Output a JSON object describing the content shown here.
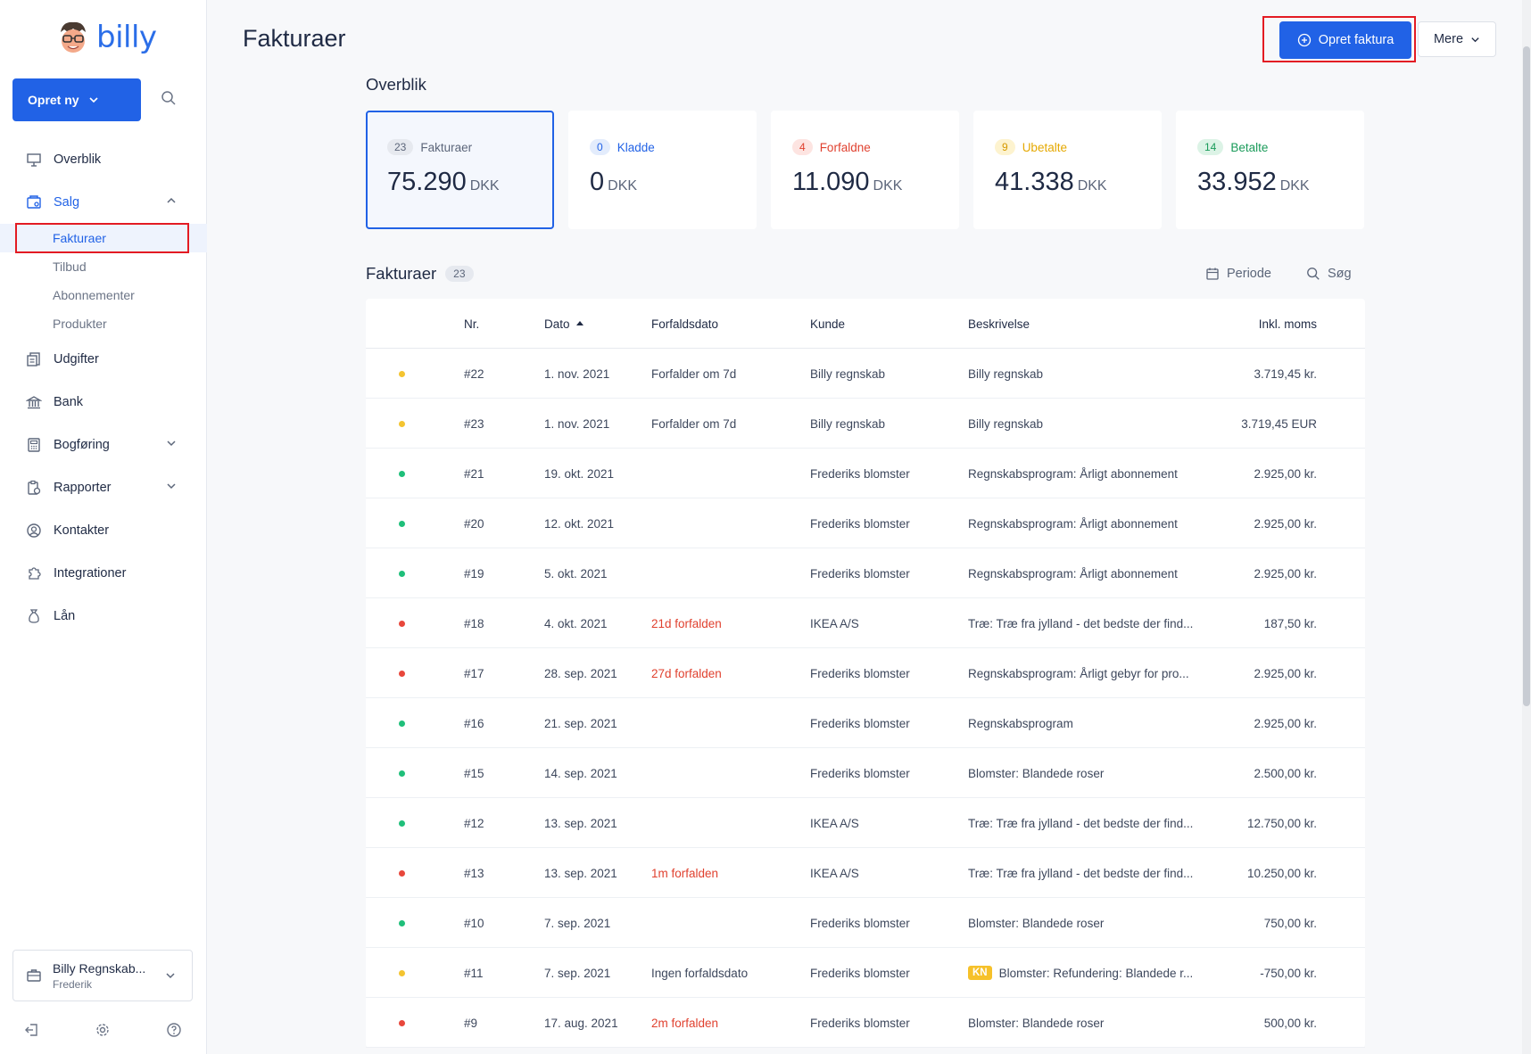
{
  "sidebar": {
    "logo_text": "billy",
    "create_label": "Opret ny",
    "items": [
      {
        "label": "Overblik",
        "icon": "presentation-icon"
      },
      {
        "label": "Salg",
        "icon": "sales-icon"
      },
      {
        "label": "Udgifter",
        "icon": "receipts-icon"
      },
      {
        "label": "Bank",
        "icon": "bank-icon"
      },
      {
        "label": "Bogføring",
        "icon": "calculator-icon"
      },
      {
        "label": "Rapporter",
        "icon": "report-icon"
      },
      {
        "label": "Kontakter",
        "icon": "contact-icon"
      },
      {
        "label": "Integrationer",
        "icon": "puzzle-icon"
      },
      {
        "label": "Lån",
        "icon": "moneybag-icon"
      }
    ],
    "sales_sub": [
      "Fakturaer",
      "Tilbud",
      "Abonnementer",
      "Produkter"
    ],
    "org_name": "Billy Regnskab...",
    "org_user": "Frederik"
  },
  "header": {
    "title": "Fakturaer",
    "create_invoice": "Opret faktura",
    "more": "Mere"
  },
  "overview": {
    "title": "Overblik",
    "cards": [
      {
        "count": "23",
        "label": "Fakturaer",
        "amount": "75.290",
        "currency": "DKK",
        "color": "#5c667a",
        "bg": "#e6e9ef"
      },
      {
        "count": "0",
        "label": "Kladde",
        "amount": "0",
        "currency": "DKK",
        "color": "#2162e6",
        "bg": "#e3ecfc"
      },
      {
        "count": "4",
        "label": "Forfaldne",
        "amount": "11.090",
        "currency": "DKK",
        "color": "#e0412f",
        "bg": "#fde4e1"
      },
      {
        "count": "9",
        "label": "Ubetalte",
        "amount": "41.338",
        "currency": "DKK",
        "color": "#e5a800",
        "bg": "#fdf3cf"
      },
      {
        "count": "14",
        "label": "Betalte",
        "amount": "33.952",
        "currency": "DKK",
        "color": "#1a9b5a",
        "bg": "#dcf3e6"
      }
    ]
  },
  "list": {
    "title": "Fakturaer",
    "count": "23",
    "period": "Periode",
    "search": "Søg",
    "columns": {
      "nr": "Nr.",
      "date": "Dato",
      "due": "Forfaldsdato",
      "customer": "Kunde",
      "description": "Beskrivelse",
      "amount": "Inkl. moms"
    },
    "rows": [
      {
        "status": "#f4c430",
        "nr": "#22",
        "date": "1. nov. 2021",
        "due": "Forfalder om 7d",
        "overdue": false,
        "customer": "Billy regnskab",
        "kn": "",
        "description": "Billy regnskab",
        "amount": "3.719,45 kr."
      },
      {
        "status": "#f4c430",
        "nr": "#23",
        "date": "1. nov. 2021",
        "due": "Forfalder om 7d",
        "overdue": false,
        "customer": "Billy regnskab",
        "kn": "",
        "description": "Billy regnskab",
        "amount": "3.719,45 EUR"
      },
      {
        "status": "#1fbf7a",
        "nr": "#21",
        "date": "19. okt. 2021",
        "due": "",
        "overdue": false,
        "customer": "Frederiks blomster",
        "kn": "",
        "description": "Regnskabsprogram: Årligt abonnement",
        "amount": "2.925,00 kr."
      },
      {
        "status": "#1fbf7a",
        "nr": "#20",
        "date": "12. okt. 2021",
        "due": "",
        "overdue": false,
        "customer": "Frederiks blomster",
        "kn": "",
        "description": "Regnskabsprogram: Årligt abonnement",
        "amount": "2.925,00 kr."
      },
      {
        "status": "#1fbf7a",
        "nr": "#19",
        "date": "5. okt. 2021",
        "due": "",
        "overdue": false,
        "customer": "Frederiks blomster",
        "kn": "",
        "description": "Regnskabsprogram: Årligt abonnement",
        "amount": "2.925,00 kr."
      },
      {
        "status": "#e8473b",
        "nr": "#18",
        "date": "4. okt. 2021",
        "due": "21d forfalden",
        "overdue": true,
        "customer": "IKEA A/S",
        "kn": "",
        "description": "Træ: Træ fra jylland - det bedste der find...",
        "amount": "187,50 kr."
      },
      {
        "status": "#e8473b",
        "nr": "#17",
        "date": "28. sep. 2021",
        "due": "27d forfalden",
        "overdue": true,
        "customer": "Frederiks blomster",
        "kn": "",
        "description": "Regnskabsprogram: Årligt gebyr for pro...",
        "amount": "2.925,00 kr."
      },
      {
        "status": "#1fbf7a",
        "nr": "#16",
        "date": "21. sep. 2021",
        "due": "",
        "overdue": false,
        "customer": "Frederiks blomster",
        "kn": "",
        "description": "Regnskabsprogram",
        "amount": "2.925,00 kr."
      },
      {
        "status": "#1fbf7a",
        "nr": "#15",
        "date": "14. sep. 2021",
        "due": "",
        "overdue": false,
        "customer": "Frederiks blomster",
        "kn": "",
        "description": "Blomster: Blandede roser",
        "amount": "2.500,00 kr."
      },
      {
        "status": "#1fbf7a",
        "nr": "#12",
        "date": "13. sep. 2021",
        "due": "",
        "overdue": false,
        "customer": "IKEA A/S",
        "kn": "",
        "description": "Træ: Træ fra jylland - det bedste der find...",
        "amount": "12.750,00 kr."
      },
      {
        "status": "#e8473b",
        "nr": "#13",
        "date": "13. sep. 2021",
        "due": "1m forfalden",
        "overdue": true,
        "customer": "IKEA A/S",
        "kn": "",
        "description": "Træ: Træ fra jylland - det bedste der find...",
        "amount": "10.250,00 kr."
      },
      {
        "status": "#1fbf7a",
        "nr": "#10",
        "date": "7. sep. 2021",
        "due": "",
        "overdue": false,
        "customer": "Frederiks blomster",
        "kn": "",
        "description": "Blomster: Blandede roser",
        "amount": "750,00 kr."
      },
      {
        "status": "#f4c430",
        "nr": "#11",
        "date": "7. sep. 2021",
        "due": "Ingen forfaldsdato",
        "overdue": false,
        "customer": "Frederiks blomster",
        "kn": "KN",
        "description": "Blomster: Refundering: Blandede r...",
        "amount": "-750,00 kr."
      },
      {
        "status": "#e8473b",
        "nr": "#9",
        "date": "17. aug. 2021",
        "due": "2m forfalden",
        "overdue": true,
        "customer": "Frederiks blomster",
        "kn": "",
        "description": "Blomster: Blandede roser",
        "amount": "500,00 kr."
      }
    ]
  }
}
